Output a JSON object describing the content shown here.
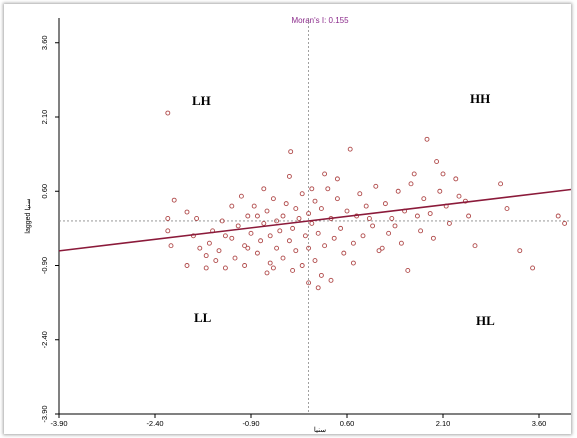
{
  "chart_data": {
    "type": "scatter",
    "title": "Moran's I: 0.155",
    "xlabel": "سنيا",
    "ylabel": "lagged سنيا",
    "xlim": [
      -3.9,
      4.1
    ],
    "ylim": [
      -3.9,
      4.1
    ],
    "x_ticks": [
      "-3.90",
      "-2.40",
      "-0.90",
      "0.60",
      "2.10",
      "3.60"
    ],
    "y_ticks": [
      "-3.90",
      "-2.40",
      "-0.90",
      "0.60",
      "2.10",
      "3.60"
    ],
    "quadrant_labels": [
      "LH",
      "HH",
      "LL",
      "HL"
    ],
    "grid": false,
    "regression_line": {
      "slope": 0.155,
      "intercept": 0.0
    },
    "mean_lines": {
      "x": 0.0,
      "y": 0.0
    },
    "colors": {
      "points": "#b04a4a",
      "regression": "#8b1a3a",
      "title": "#8b2a8b",
      "axes": "#000000",
      "mean_lines": "#888888"
    },
    "points": [
      [
        -2.2,
        2.18
      ],
      [
        -2.1,
        0.42
      ],
      [
        -1.9,
        0.18
      ],
      [
        -2.2,
        -0.2
      ],
      [
        -2.2,
        0.05
      ],
      [
        -2.15,
        -0.5
      ],
      [
        -1.8,
        -0.3
      ],
      [
        -1.7,
        -0.55
      ],
      [
        -1.6,
        -0.7
      ],
      [
        -1.5,
        -0.2
      ],
      [
        -1.55,
        -0.45
      ],
      [
        -1.45,
        -0.8
      ],
      [
        -1.4,
        -0.6
      ],
      [
        -1.3,
        -0.3
      ],
      [
        -1.3,
        -0.95
      ],
      [
        -1.2,
        0.3
      ],
      [
        -1.2,
        -0.35
      ],
      [
        -1.15,
        -0.75
      ],
      [
        -1.1,
        -0.1
      ],
      [
        -1.05,
        0.5
      ],
      [
        -1.0,
        -0.5
      ],
      [
        -1.0,
        -0.9
      ],
      [
        -0.95,
        0.1
      ],
      [
        -0.9,
        -0.25
      ],
      [
        -0.85,
        0.3
      ],
      [
        -0.8,
        -0.65
      ],
      [
        -0.75,
        -0.4
      ],
      [
        -0.7,
        0.65
      ],
      [
        -0.7,
        -0.05
      ],
      [
        -0.65,
        0.2
      ],
      [
        -0.6,
        -0.85
      ],
      [
        -0.6,
        -0.3
      ],
      [
        -0.55,
        0.45
      ],
      [
        -0.5,
        0.0
      ],
      [
        -0.5,
        -0.55
      ],
      [
        -0.45,
        -0.2
      ],
      [
        -0.4,
        0.1
      ],
      [
        -0.4,
        -0.75
      ],
      [
        -0.35,
        0.35
      ],
      [
        -0.3,
        -0.4
      ],
      [
        -0.3,
        0.9
      ],
      [
        -0.28,
        1.4
      ],
      [
        -0.25,
        -0.15
      ],
      [
        -0.2,
        -0.6
      ],
      [
        -0.2,
        0.25
      ],
      [
        -0.15,
        0.05
      ],
      [
        -0.1,
        -0.9
      ],
      [
        -0.1,
        0.55
      ],
      [
        -0.05,
        -0.3
      ],
      [
        0.0,
        -0.55
      ],
      [
        0.0,
        0.15
      ],
      [
        0.0,
        -1.25
      ],
      [
        0.05,
        -0.05
      ],
      [
        0.1,
        0.4
      ],
      [
        0.1,
        -0.8
      ],
      [
        0.15,
        -0.25
      ],
      [
        0.2,
        0.25
      ],
      [
        0.2,
        -1.1
      ],
      [
        0.25,
        -0.5
      ],
      [
        0.3,
        0.65
      ],
      [
        0.35,
        0.05
      ],
      [
        0.35,
        -1.2
      ],
      [
        0.4,
        -0.35
      ],
      [
        0.45,
        0.45
      ],
      [
        0.5,
        -0.15
      ],
      [
        0.55,
        -0.65
      ],
      [
        0.6,
        0.2
      ],
      [
        0.65,
        1.45
      ],
      [
        0.7,
        -0.45
      ],
      [
        0.75,
        0.1
      ],
      [
        0.8,
        0.55
      ],
      [
        0.85,
        -0.3
      ],
      [
        0.9,
        0.3
      ],
      [
        1.0,
        -0.1
      ],
      [
        1.05,
        0.7
      ],
      [
        1.1,
        -0.6
      ],
      [
        1.2,
        0.35
      ],
      [
        1.25,
        -0.25
      ],
      [
        1.3,
        0.05
      ],
      [
        1.4,
        0.6
      ],
      [
        1.45,
        -0.45
      ],
      [
        1.5,
        0.2
      ],
      [
        1.55,
        -1.0
      ],
      [
        1.6,
        0.75
      ],
      [
        1.7,
        0.1
      ],
      [
        1.75,
        -0.2
      ],
      [
        1.8,
        0.45
      ],
      [
        1.85,
        1.65
      ],
      [
        1.9,
        0.15
      ],
      [
        1.95,
        -0.35
      ],
      [
        2.0,
        1.2
      ],
      [
        2.05,
        0.6
      ],
      [
        2.1,
        0.95
      ],
      [
        2.15,
        0.3
      ],
      [
        2.2,
        -0.05
      ],
      [
        2.3,
        0.85
      ],
      [
        2.35,
        0.5
      ],
      [
        2.5,
        0.1
      ],
      [
        2.6,
        -0.5
      ],
      [
        3.0,
        0.75
      ],
      [
        3.3,
        -0.6
      ],
      [
        3.5,
        -0.95
      ],
      [
        3.9,
        0.1
      ],
      [
        4.0,
        -0.05
      ],
      [
        4.2,
        0.9
      ],
      [
        -1.75,
        0.05
      ],
      [
        -1.35,
        0.0
      ],
      [
        -0.95,
        -0.55
      ],
      [
        -0.55,
        -0.95
      ],
      [
        -0.25,
        -1.0
      ],
      [
        0.15,
        -1.35
      ],
      [
        0.45,
        0.85
      ],
      [
        0.95,
        0.05
      ],
      [
        1.35,
        -0.1
      ],
      [
        -1.9,
        -0.9
      ],
      [
        -1.6,
        -0.95
      ],
      [
        -0.8,
        0.1
      ],
      [
        0.25,
        0.95
      ],
      [
        0.7,
        -0.85
      ],
      [
        1.15,
        -0.55
      ],
      [
        1.65,
        0.95
      ],
      [
        2.45,
        0.4
      ],
      [
        3.1,
        0.25
      ],
      [
        -0.65,
        -1.05
      ],
      [
        0.05,
        0.65
      ]
    ]
  }
}
